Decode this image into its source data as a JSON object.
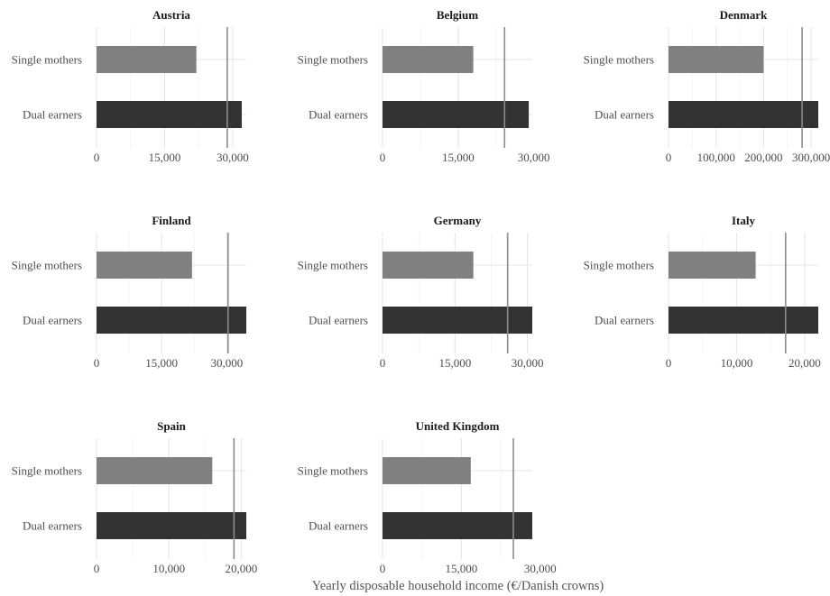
{
  "chart_data": {
    "type": "bar",
    "orientation": "horizontal",
    "layout": "3x3 facet grid",
    "grid": true,
    "bar_colors": {
      "Single mothers": "#808080",
      "Dual earners": "#333333"
    },
    "reference_line_color": "#8c8c8c",
    "xlabel": "Yearly disposable household income (€/Danish crowns)",
    "categories": [
      "Single mothers",
      "Dual earners"
    ],
    "panels": [
      {
        "title": "Austria",
        "values": [
          22000,
          32000
        ],
        "reference_line": 28800,
        "xlim": [
          0,
          33000
        ],
        "ticks": [
          0,
          15000,
          30000
        ],
        "tick_labels": [
          "0",
          "15,000",
          "30,000"
        ]
      },
      {
        "title": "Belgium",
        "values": [
          18000,
          29000
        ],
        "reference_line": 24200,
        "xlim": [
          0,
          29700
        ],
        "ticks": [
          0,
          15000,
          30000
        ],
        "tick_labels": [
          "0",
          "15,000",
          "30,000"
        ]
      },
      {
        "title": "Denmark",
        "values": [
          200000,
          315000
        ],
        "reference_line": 281000,
        "xlim": [
          0,
          315000
        ],
        "ticks": [
          0,
          100000,
          200000,
          300000
        ],
        "tick_labels": [
          "0",
          "100,000",
          "200,000",
          "300,000"
        ]
      },
      {
        "title": "Finland",
        "values": [
          22000,
          34500
        ],
        "reference_line": 30300,
        "xlim": [
          0,
          34500
        ],
        "ticks": [
          0,
          15000,
          30000
        ],
        "tick_labels": [
          "0",
          "15,000",
          "30,000"
        ]
      },
      {
        "title": "Germany",
        "values": [
          18800,
          31000
        ],
        "reference_line": 25900,
        "xlim": [
          0,
          31000
        ],
        "ticks": [
          0,
          15000,
          30000
        ],
        "tick_labels": [
          "0",
          "15,000",
          "30,000"
        ]
      },
      {
        "title": "Italy",
        "values": [
          12800,
          22000
        ],
        "reference_line": 17200,
        "xlim": [
          0,
          22000
        ],
        "ticks": [
          0,
          10000,
          20000
        ],
        "tick_labels": [
          "0",
          "10,000",
          "20,000"
        ]
      },
      {
        "title": "Spain",
        "values": [
          16000,
          20700
        ],
        "reference_line": 19000,
        "xlim": [
          0,
          20700
        ],
        "ticks": [
          0,
          10000,
          20000
        ],
        "tick_labels": [
          "0",
          "10,000",
          "20,000"
        ]
      },
      {
        "title": "United Kingdom",
        "values": [
          16800,
          28500
        ],
        "reference_line": 24900,
        "xlim": [
          0,
          28500
        ],
        "ticks": [
          0,
          15000,
          30000
        ],
        "tick_labels": [
          "0",
          "15,000",
          "30,000"
        ]
      }
    ]
  }
}
